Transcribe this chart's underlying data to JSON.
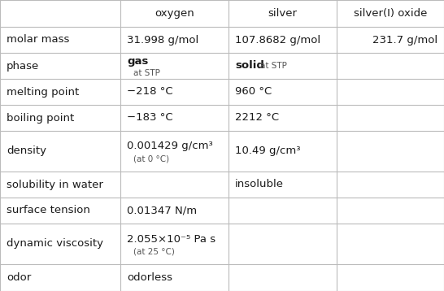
{
  "col_headers": [
    "",
    "oxygen",
    "silver",
    "silver(I) oxide"
  ],
  "rows": [
    {
      "label": "molar mass",
      "oxygen_main": "31.998 g/mol",
      "oxygen_sub": "",
      "silver_main": "107.8682 g/mol",
      "silver_sub": "",
      "oxide_main": "231.7 g/mol",
      "oxide_sub": ""
    },
    {
      "label": "phase",
      "oxygen_main": "gas",
      "oxygen_sub": "at STP",
      "oxygen_bold": true,
      "silver_main": "solid",
      "silver_sub": "at STP",
      "silver_bold": true,
      "oxide_main": "",
      "oxide_sub": ""
    },
    {
      "label": "melting point",
      "oxygen_main": "−218 °C",
      "oxygen_sub": "",
      "silver_main": "960 °C",
      "silver_sub": "",
      "oxide_main": "",
      "oxide_sub": ""
    },
    {
      "label": "boiling point",
      "oxygen_main": "−183 °C",
      "oxygen_sub": "",
      "silver_main": "2212 °C",
      "silver_sub": "",
      "oxide_main": "",
      "oxide_sub": ""
    },
    {
      "label": "density",
      "oxygen_main": "0.001429 g/cm³",
      "oxygen_sub": "(at 0 °C)",
      "silver_main": "10.49 g/cm³",
      "silver_sub": "",
      "oxide_main": "",
      "oxide_sub": ""
    },
    {
      "label": "solubility in water",
      "oxygen_main": "",
      "oxygen_sub": "",
      "silver_main": "insoluble",
      "silver_sub": "",
      "oxide_main": "",
      "oxide_sub": ""
    },
    {
      "label": "surface tension",
      "oxygen_main": "0.01347 N/m",
      "oxygen_sub": "",
      "silver_main": "",
      "silver_sub": "",
      "oxide_main": "",
      "oxide_sub": ""
    },
    {
      "label": "dynamic viscosity",
      "oxygen_main": "2.055×10⁻⁵ Pa s",
      "oxygen_sub": "(at 25 °C)",
      "silver_main": "",
      "silver_sub": "",
      "oxide_main": "",
      "oxide_sub": ""
    },
    {
      "label": "odor",
      "oxygen_main": "odorless",
      "oxygen_sub": "",
      "silver_main": "",
      "silver_sub": "",
      "oxide_main": "",
      "oxide_sub": ""
    }
  ],
  "line_color": "#bbbbbb",
  "text_color": "#1a1a1a",
  "sub_text_color": "#555555",
  "header_fontsize": 9.5,
  "body_fontsize": 9.5,
  "sub_fontsize": 7.5,
  "label_fontsize": 9.5
}
